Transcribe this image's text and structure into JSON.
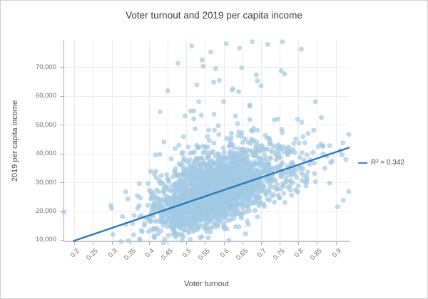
{
  "window": {
    "background": "#ffffff",
    "border_color": "#cfcfcf"
  },
  "colors": {
    "axis_line": "#adadad",
    "gridline": "#ececec",
    "tick_label": "#6e6e6e",
    "title_text": "#3d3d3d",
    "axis_title_text": "#4f4f4f",
    "trendline_blue": "#2878bd",
    "marker_blue": "#a3c9e3"
  },
  "chart_data": {
    "type": "scatter",
    "title": "Voter turnout and 2019 per capita income",
    "xlabel": "Voter turnout",
    "ylabel": "2019 per capita income",
    "xlim": [
      0.171,
      0.937
    ],
    "ylim": [
      9500,
      79200
    ],
    "grid": true,
    "x_ticks": [
      {
        "v": 0.2,
        "label": "0.2"
      },
      {
        "v": 0.25,
        "label": "0.25"
      },
      {
        "v": 0.3,
        "label": "0.3"
      },
      {
        "v": 0.35,
        "label": "0.35"
      },
      {
        "v": 0.4,
        "label": "0.4"
      },
      {
        "v": 0.45,
        "label": "0.45"
      },
      {
        "v": 0.5,
        "label": "0.5"
      },
      {
        "v": 0.55,
        "label": "0.55"
      },
      {
        "v": 0.6,
        "label": "0.6"
      },
      {
        "v": 0.65,
        "label": "0.65"
      },
      {
        "v": 0.7,
        "label": "0.7"
      },
      {
        "v": 0.75,
        "label": "0.75"
      },
      {
        "v": 0.8,
        "label": "0.8"
      },
      {
        "v": 0.85,
        "label": "0.85"
      },
      {
        "v": 0.9,
        "label": "0.9"
      }
    ],
    "y_ticks": [
      {
        "v": 10000,
        "label": "10,000"
      },
      {
        "v": 20000,
        "label": "20,000"
      },
      {
        "v": 30000,
        "label": "30,000"
      },
      {
        "v": 40000,
        "label": "40,000"
      },
      {
        "v": 50000,
        "label": "50,000"
      },
      {
        "v": 60000,
        "label": "60,000"
      },
      {
        "v": 70000,
        "label": "70,000"
      }
    ],
    "legend": {
      "label": "R² = 0.342",
      "position": "right-of-plot"
    },
    "trendline": {
      "x1": 0.197,
      "y1": 9600,
      "x2": 0.937,
      "y2": 42100,
      "r_squared": 0.342,
      "color": "#2878bd",
      "width": 2.4
    },
    "marker": {
      "color": "#a3c9e3",
      "opacity": 0.7,
      "radius": 3.5
    },
    "cloud": {
      "n": 2400,
      "seed": 7,
      "x_components": [
        {
          "weight": 0.88,
          "mean": 0.565,
          "sd": 0.075
        },
        {
          "weight": 0.12,
          "mean": 0.7,
          "sd": 0.09
        }
      ],
      "x_min": 0.19,
      "x_max": 0.935,
      "trend_intercept": 1000,
      "trend_slope": 44000,
      "noise_sd": 5200,
      "upper_skew": 1.35,
      "outlier_prob": 0.022,
      "outlier_min": 8000,
      "outlier_max": 30000,
      "extreme_prob": 0.004,
      "extreme_min": 30000,
      "extreme_max": 48000,
      "y_min": 9000,
      "y_max": 78800
    },
    "highlight_points": [
      {
        "x": 0.172,
        "y": 19700
      },
      {
        "x": 0.757,
        "y": 78800
      },
      {
        "x": 0.808,
        "y": 76200
      },
      {
        "x": 0.545,
        "y": 70300
      },
      {
        "x": 0.579,
        "y": 69500
      },
      {
        "x": 0.648,
        "y": 69800
      },
      {
        "x": 0.754,
        "y": 68700
      },
      {
        "x": 0.763,
        "y": 67600
      },
      {
        "x": 0.7,
        "y": 63500
      },
      {
        "x": 0.64,
        "y": 61500
      },
      {
        "x": 0.6,
        "y": 58000
      },
      {
        "x": 0.67,
        "y": 56500
      },
      {
        "x": 0.52,
        "y": 52000
      },
      {
        "x": 0.935,
        "y": 26800
      },
      {
        "x": 0.92,
        "y": 23800
      },
      {
        "x": 0.905,
        "y": 21500
      },
      {
        "x": 0.325,
        "y": 9400
      },
      {
        "x": 0.345,
        "y": 9800
      },
      {
        "x": 0.375,
        "y": 10300
      },
      {
        "x": 0.415,
        "y": 10800
      },
      {
        "x": 0.44,
        "y": 44000
      },
      {
        "x": 0.3,
        "y": 21000
      }
    ]
  }
}
